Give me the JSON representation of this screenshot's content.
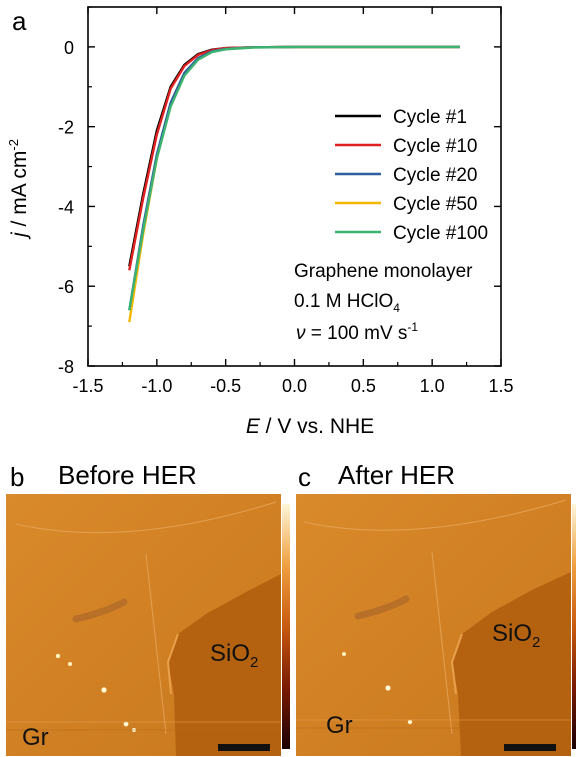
{
  "panels": {
    "a": "a",
    "b": "b",
    "c": "c"
  },
  "chart_data": {
    "type": "line",
    "xlabel_italic": "E",
    "xlabel_rest": " / V vs. NHE",
    "ylabel_italic": "j",
    "ylabel_rest": " / mA cm",
    "ylabel_sup": "-2",
    "xlim": [
      -1.5,
      1.5
    ],
    "ylim": [
      -8,
      1
    ],
    "xticks": [
      -1.5,
      -1.0,
      -0.5,
      0.0,
      0.5,
      1.0,
      1.5
    ],
    "xtick_labels": [
      "-1.5",
      "-1.0",
      "-0.5",
      "0.0",
      "0.5",
      "1.0",
      "1.5"
    ],
    "yticks": [
      -8,
      -6,
      -4,
      -2,
      0
    ],
    "ytick_labels": [
      "-8",
      "-6",
      "-4",
      "-2",
      "0"
    ],
    "legend_position": "right",
    "series": [
      {
        "name": "Cycle #1",
        "color": "#000000",
        "points": [
          [
            -1.2,
            -5.5
          ],
          [
            -1.1,
            -3.7
          ],
          [
            -1.0,
            -2.1
          ],
          [
            -0.9,
            -1.0
          ],
          [
            -0.8,
            -0.45
          ],
          [
            -0.7,
            -0.18
          ],
          [
            -0.6,
            -0.07
          ],
          [
            -0.5,
            -0.03
          ],
          [
            -0.3,
            -0.01
          ],
          [
            0.0,
            0.0
          ],
          [
            0.5,
            0.0
          ],
          [
            1.2,
            0.0
          ]
        ]
      },
      {
        "name": "Cycle #10",
        "color": "#e02020",
        "points": [
          [
            -1.2,
            -5.6
          ],
          [
            -1.1,
            -3.8
          ],
          [
            -1.0,
            -2.2
          ],
          [
            -0.9,
            -1.05
          ],
          [
            -0.8,
            -0.48
          ],
          [
            -0.7,
            -0.2
          ],
          [
            -0.6,
            -0.08
          ],
          [
            -0.5,
            -0.03
          ],
          [
            -0.3,
            -0.01
          ],
          [
            0.0,
            0.0
          ],
          [
            0.5,
            0.0
          ],
          [
            1.2,
            0.0
          ]
        ]
      },
      {
        "name": "Cycle #20",
        "color": "#2e5f9e",
        "points": [
          [
            -1.2,
            -6.6
          ],
          [
            -1.1,
            -4.5
          ],
          [
            -1.0,
            -2.7
          ],
          [
            -0.9,
            -1.4
          ],
          [
            -0.8,
            -0.65
          ],
          [
            -0.7,
            -0.28
          ],
          [
            -0.6,
            -0.11
          ],
          [
            -0.5,
            -0.05
          ],
          [
            -0.3,
            -0.01
          ],
          [
            0.0,
            0.0
          ],
          [
            0.5,
            0.0
          ],
          [
            1.2,
            0.0
          ]
        ]
      },
      {
        "name": "Cycle #50",
        "color": "#f5b800",
        "points": [
          [
            -1.2,
            -6.9
          ],
          [
            -1.1,
            -4.7
          ],
          [
            -1.0,
            -2.8
          ],
          [
            -0.9,
            -1.45
          ],
          [
            -0.8,
            -0.68
          ],
          [
            -0.7,
            -0.3
          ],
          [
            -0.6,
            -0.12
          ],
          [
            -0.5,
            -0.05
          ],
          [
            -0.3,
            -0.01
          ],
          [
            0.0,
            0.0
          ],
          [
            0.5,
            0.0
          ],
          [
            1.2,
            0.0
          ]
        ]
      },
      {
        "name": "Cycle #100",
        "color": "#3cb371",
        "points": [
          [
            -1.2,
            -6.6
          ],
          [
            -1.1,
            -4.6
          ],
          [
            -1.0,
            -2.8
          ],
          [
            -0.9,
            -1.5
          ],
          [
            -0.8,
            -0.72
          ],
          [
            -0.7,
            -0.32
          ],
          [
            -0.6,
            -0.13
          ],
          [
            -0.5,
            -0.06
          ],
          [
            -0.3,
            -0.015
          ],
          [
            0.0,
            0.0
          ],
          [
            0.5,
            0.0
          ],
          [
            1.2,
            0.0
          ]
        ]
      }
    ],
    "annotations": {
      "line1": "Graphene monolayer",
      "line2_main": "0.1 M HClO",
      "line2_sub": "4",
      "line3_italic": "ν",
      "line3_rest": " = 100 mV s",
      "line3_sup": "-1"
    }
  },
  "images": {
    "before_title": "Before HER",
    "after_title": "After HER",
    "sio2_main": "SiO",
    "sio2_sub": "2",
    "gr": "Gr"
  }
}
